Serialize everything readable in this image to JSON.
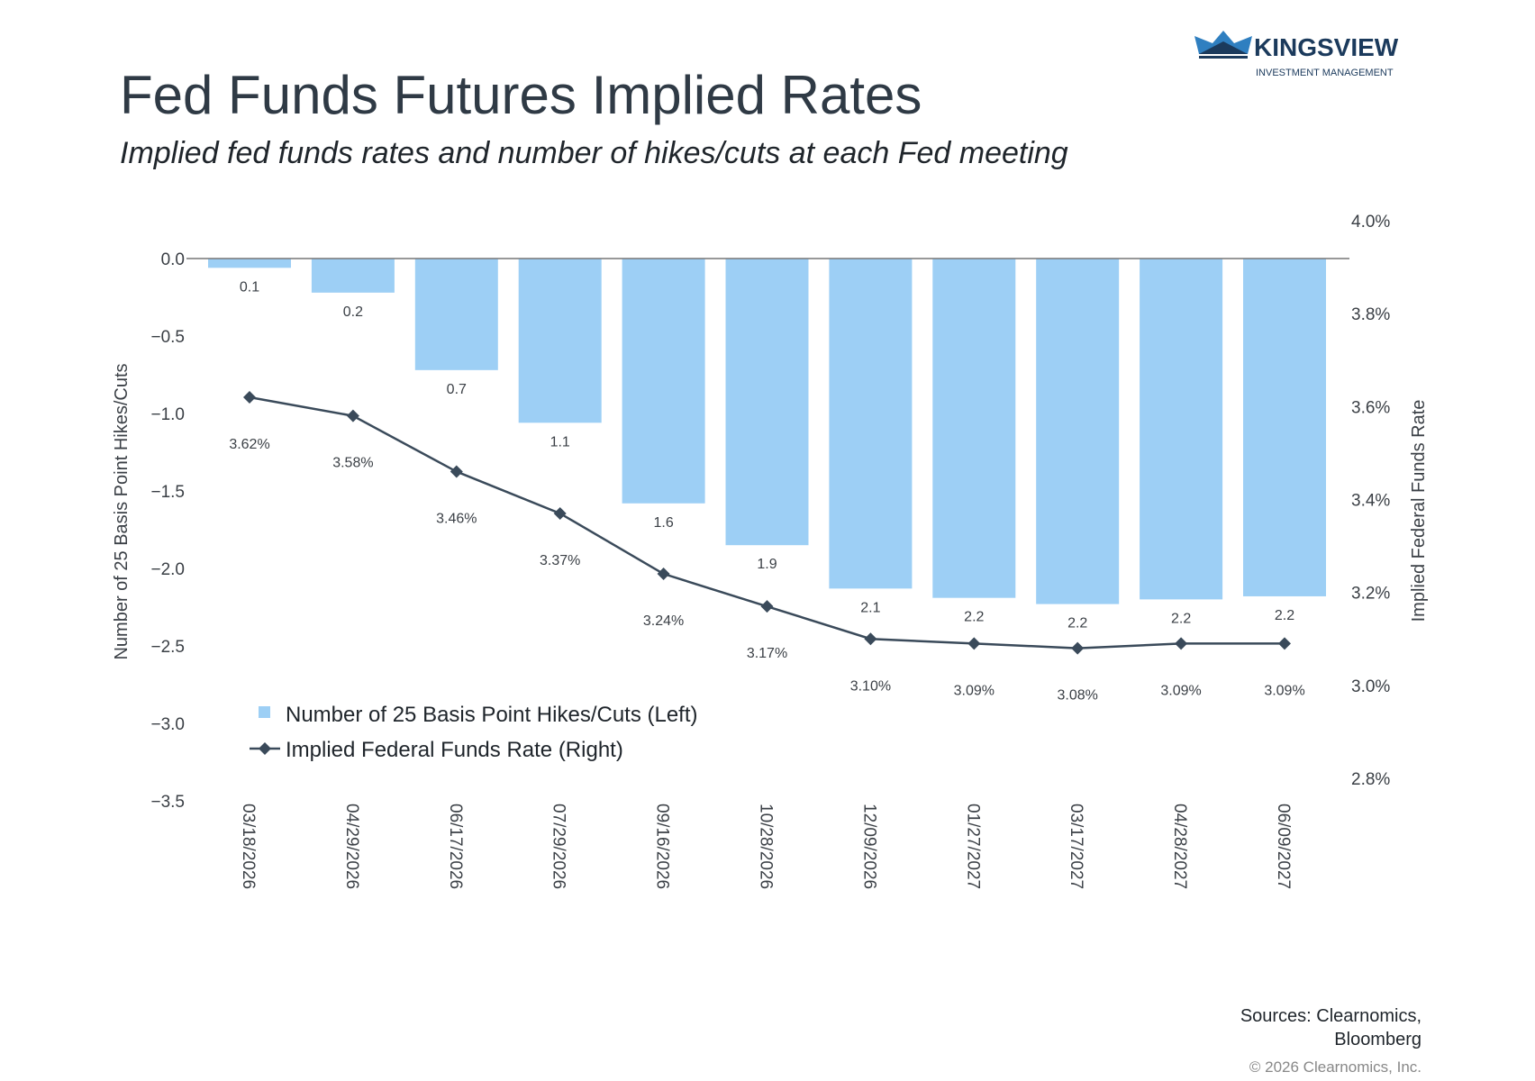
{
  "header": {
    "title": "Fed Funds Futures Implied Rates",
    "subtitle": "Implied fed funds rates and number of hikes/cuts at each Fed meeting",
    "logo_name": "KINGSVIEW",
    "logo_tagline": "INVESTMENT MANAGEMENT"
  },
  "footer": {
    "sources_line1": "Sources: Clearnomics,",
    "sources_line2": "Bloomberg",
    "copyright": "© 2026 Clearnomics, Inc."
  },
  "chart_data": {
    "type": "bar",
    "categories": [
      "03/18/2026",
      "04/29/2026",
      "06/17/2026",
      "07/29/2026",
      "09/16/2026",
      "10/28/2026",
      "12/09/2026",
      "01/27/2027",
      "03/17/2027",
      "04/28/2027",
      "06/09/2027"
    ],
    "series": [
      {
        "name": "Number of 25 Basis Point Hikes/Cuts (Left)",
        "type": "bar",
        "axis": "left",
        "color": "#9dcff5",
        "values": [
          -0.06,
          -0.22,
          -0.72,
          -1.06,
          -1.58,
          -1.85,
          -2.13,
          -2.19,
          -2.23,
          -2.2,
          -2.18
        ],
        "labels": [
          "0.1",
          "0.2",
          "0.7",
          "1.1",
          "1.6",
          "1.9",
          "2.1",
          "2.2",
          "2.2",
          "2.2",
          "2.2"
        ]
      },
      {
        "name": "Implied Federal Funds Rate (Right)",
        "type": "line",
        "axis": "right",
        "color": "#3a4a5a",
        "values": [
          3.62,
          3.58,
          3.46,
          3.37,
          3.24,
          3.17,
          3.1,
          3.09,
          3.08,
          3.09,
          3.09
        ],
        "labels": [
          "3.62%",
          "3.58%",
          "3.46%",
          "3.37%",
          "3.24%",
          "3.17%",
          "3.10%",
          "3.09%",
          "3.08%",
          "3.09%",
          "3.09%"
        ]
      }
    ],
    "y_left": {
      "label": "Number of 25 Basis Point Hikes/Cuts",
      "range": [
        -3.5,
        0.0
      ],
      "ticks": [
        "0.0",
        "−0.5",
        "−1.0",
        "−1.5",
        "−2.0",
        "−2.5",
        "−3.0",
        "−3.5"
      ],
      "tick_values": [
        0,
        -0.5,
        -1,
        -1.5,
        -2,
        -2.5,
        -3,
        -3.5
      ]
    },
    "y_right": {
      "label": "Implied Federal Funds Rate",
      "range": [
        2.8,
        4.0
      ],
      "ticks": [
        "4.0%",
        "3.8%",
        "3.6%",
        "3.4%",
        "3.2%",
        "3.0%",
        "2.8%"
      ],
      "tick_values": [
        4.0,
        3.8,
        3.6,
        3.4,
        3.2,
        3.0,
        2.8
      ]
    },
    "legend": "bottom-left inside",
    "grid": false
  }
}
